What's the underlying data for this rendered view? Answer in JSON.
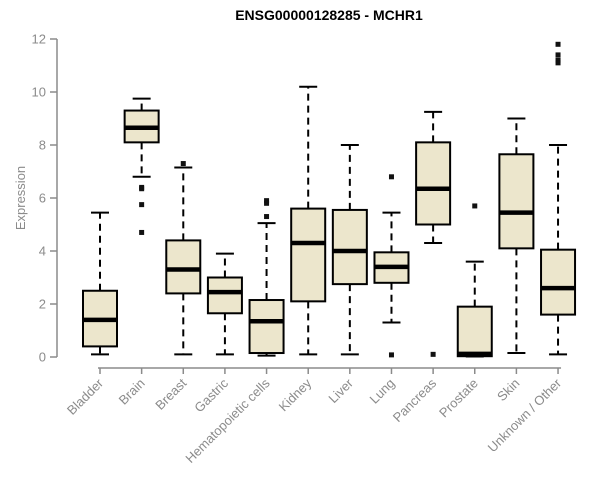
{
  "title": "ENSG00000128285 - MCHR1",
  "colors": {
    "box_fill": "#ece6cc",
    "box_border": "#000000",
    "median": "#000000",
    "whisker": "#000000",
    "outlier": "#111111",
    "axis": "#8b8b8b",
    "tick_label": "#8b8b8b",
    "title": "#000000",
    "background": "#ffffff"
  },
  "chart_data": {
    "type": "boxplot",
    "title": "ENSG00000128285 - MCHR1",
    "xlabel": "",
    "ylabel": "Expression",
    "ylim": [
      0,
      12
    ],
    "yticks": [
      0,
      2,
      4,
      6,
      8,
      10,
      12
    ],
    "grid": false,
    "whisker_style": "dashed",
    "categories": [
      "Bladder",
      "Brain",
      "Breast",
      "Gastric",
      "Hematopoietic cells",
      "Kidney",
      "Liver",
      "Lung",
      "Pancreas",
      "Prostate",
      "Skin",
      "Unknown / Other"
    ],
    "series": [
      {
        "name": "Bladder",
        "whisker_low": 0.1,
        "q1": 0.4,
        "median": 1.4,
        "q3": 2.5,
        "whisker_high": 5.45,
        "outliers": []
      },
      {
        "name": "Brain",
        "whisker_low": 6.8,
        "q1": 8.1,
        "median": 8.65,
        "q3": 9.3,
        "whisker_high": 9.75,
        "outliers": [
          6.4,
          6.35,
          5.75,
          4.7
        ]
      },
      {
        "name": "Breast",
        "whisker_low": 0.1,
        "q1": 2.4,
        "median": 3.3,
        "q3": 4.4,
        "whisker_high": 7.15,
        "outliers": [
          7.3
        ]
      },
      {
        "name": "Gastric",
        "whisker_low": 0.1,
        "q1": 1.65,
        "median": 2.45,
        "q3": 3.0,
        "whisker_high": 3.9,
        "outliers": []
      },
      {
        "name": "Hematopoietic cells",
        "whisker_low": 0.05,
        "q1": 0.15,
        "median": 1.35,
        "q3": 2.15,
        "whisker_high": 5.05,
        "outliers": [
          5.9,
          5.8,
          5.3
        ]
      },
      {
        "name": "Kidney",
        "whisker_low": 0.1,
        "q1": 2.1,
        "median": 4.3,
        "q3": 5.6,
        "whisker_high": 10.2,
        "outliers": []
      },
      {
        "name": "Liver",
        "whisker_low": 0.1,
        "q1": 2.75,
        "median": 4.0,
        "q3": 5.55,
        "whisker_high": 8.0,
        "outliers": []
      },
      {
        "name": "Lung",
        "whisker_low": 1.3,
        "q1": 2.8,
        "median": 3.4,
        "q3": 3.95,
        "whisker_high": 5.45,
        "outliers": [
          6.8,
          0.08
        ]
      },
      {
        "name": "Pancreas",
        "whisker_low": 4.3,
        "q1": 5.0,
        "median": 6.35,
        "q3": 8.1,
        "whisker_high": 9.25,
        "outliers": [
          0.1
        ]
      },
      {
        "name": "Prostate",
        "whisker_low": 0.02,
        "q1": 0.03,
        "median": 0.12,
        "q3": 1.9,
        "whisker_high": 3.6,
        "outliers": [
          5.7
        ]
      },
      {
        "name": "Skin",
        "whisker_low": 0.15,
        "q1": 4.1,
        "median": 5.45,
        "q3": 7.65,
        "whisker_high": 9.0,
        "outliers": []
      },
      {
        "name": "Unknown / Other",
        "whisker_low": 0.1,
        "q1": 1.6,
        "median": 2.6,
        "q3": 4.05,
        "whisker_high": 8.0,
        "outliers": [
          11.8,
          11.4,
          11.2,
          11.1
        ]
      }
    ]
  }
}
